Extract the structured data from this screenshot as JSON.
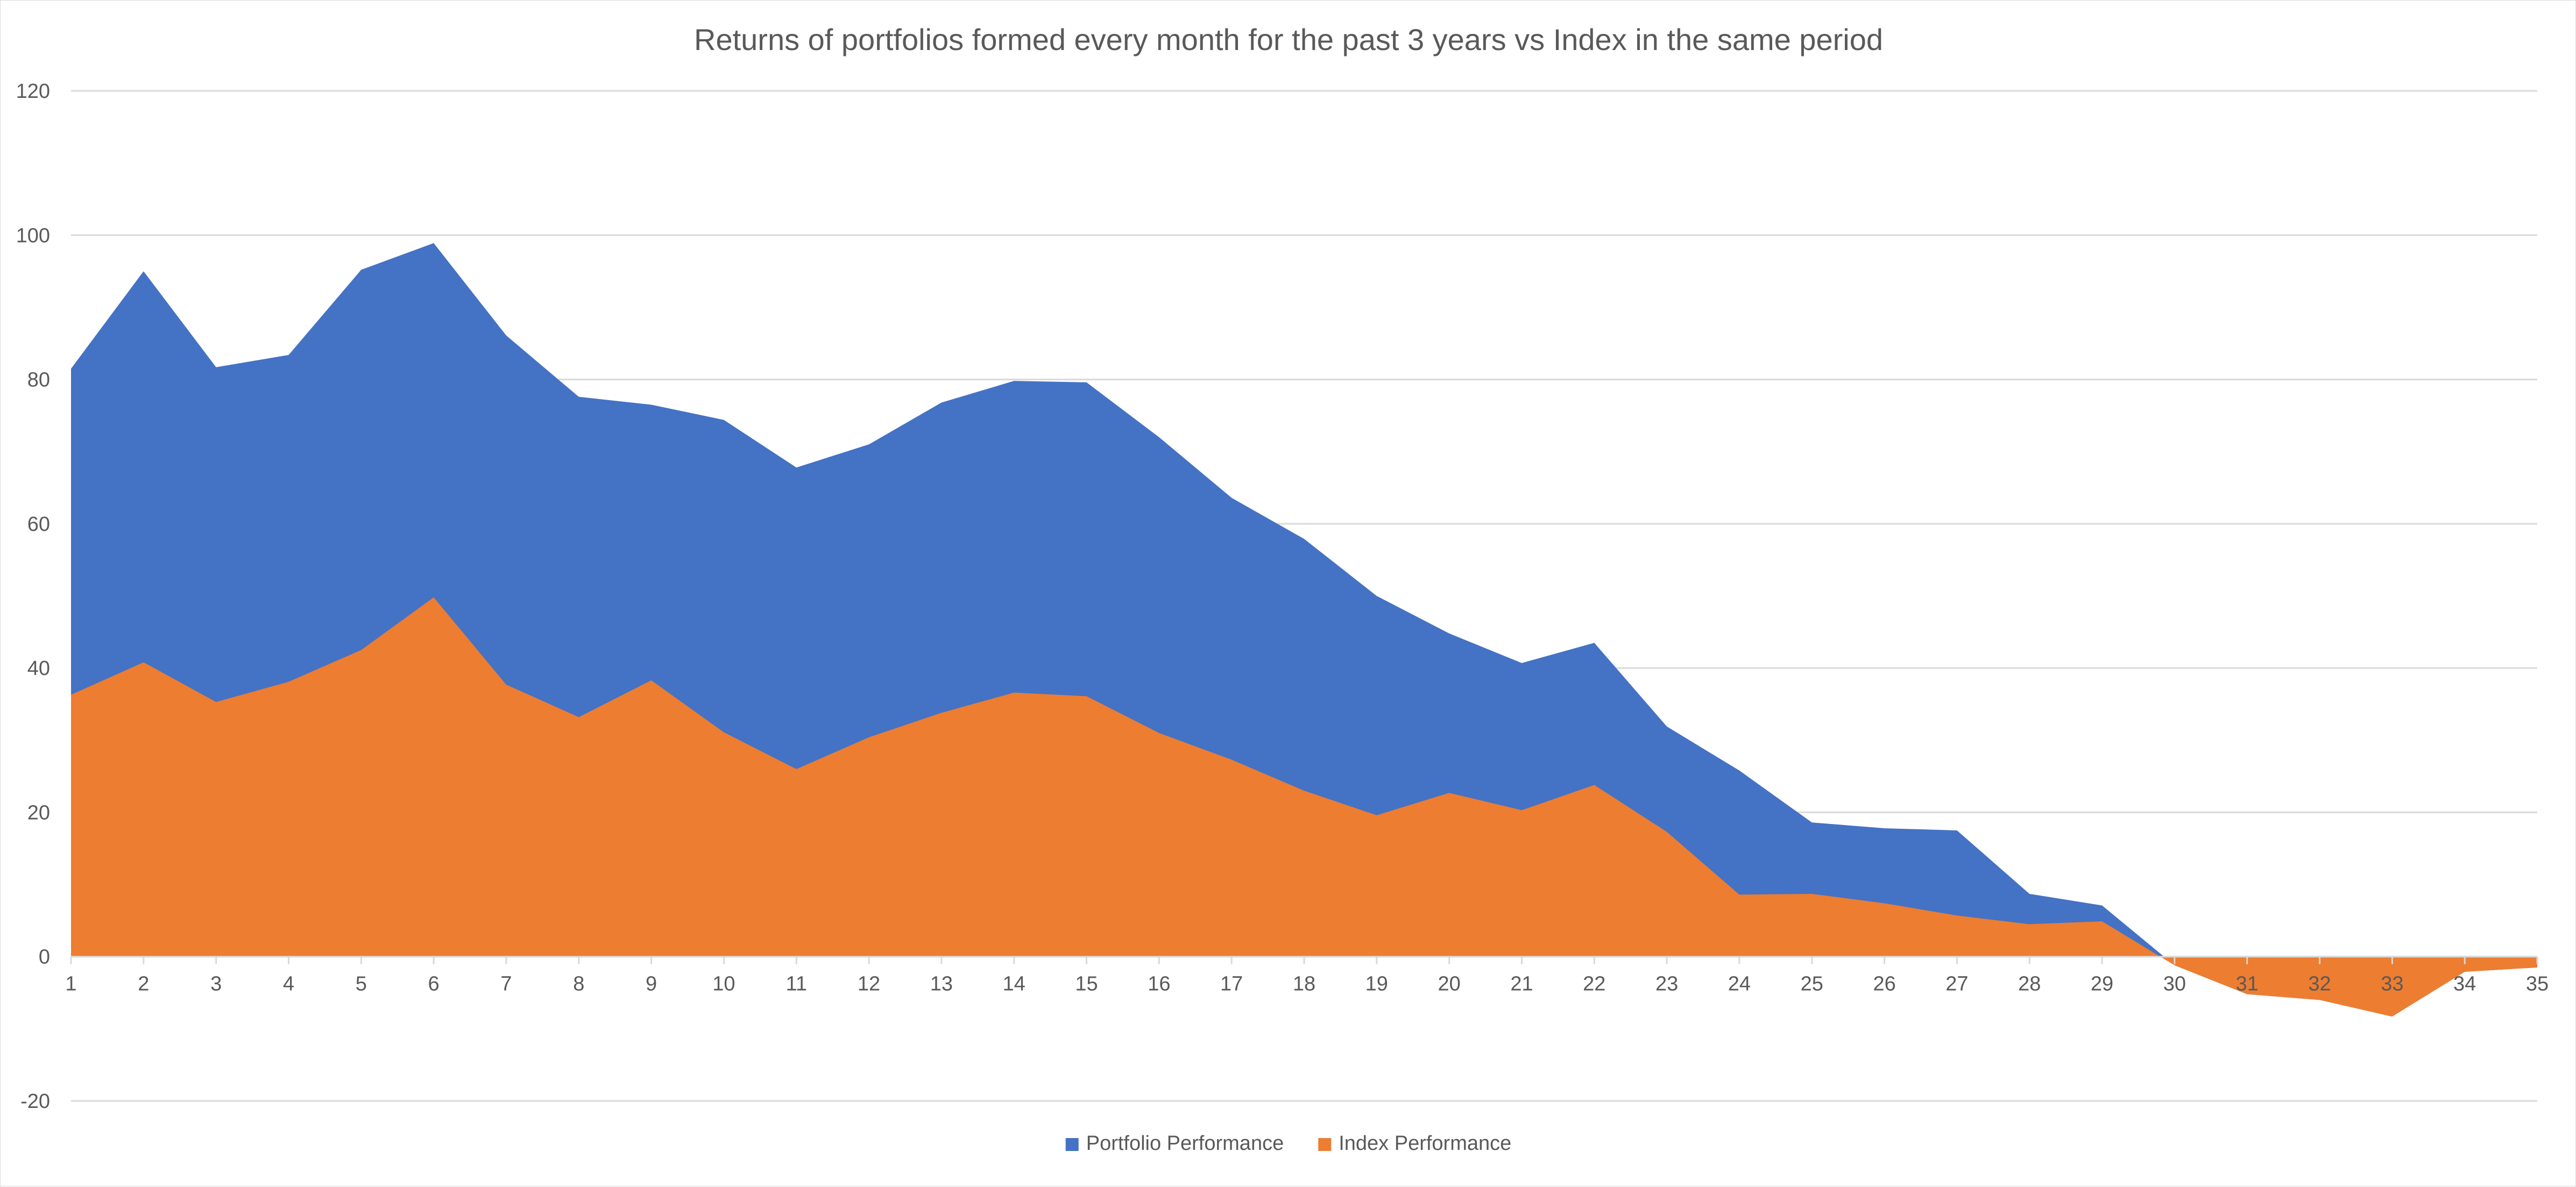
{
  "chart_data": {
    "type": "area",
    "title": "Returns of portfolios formed every  month for the past 3 years vs Index in the same period",
    "xlabel": "",
    "ylabel": "",
    "x": [
      1,
      2,
      3,
      4,
      5,
      6,
      7,
      8,
      9,
      10,
      11,
      12,
      13,
      14,
      15,
      16,
      17,
      18,
      19,
      20,
      21,
      22,
      23,
      24,
      25,
      26,
      27,
      28,
      29,
      30,
      31,
      32,
      33,
      34,
      35
    ],
    "x_tick_labels": [
      "1",
      "2",
      "3",
      "4",
      "5",
      "6",
      "7",
      "8",
      "9",
      "10",
      "11",
      "12",
      "13",
      "14",
      "15",
      "16",
      "17",
      "18",
      "19",
      "20",
      "21",
      "22",
      "23",
      "24",
      "25",
      "26",
      "27",
      "28",
      "29",
      "30",
      "31",
      "32",
      "33",
      "34",
      "35"
    ],
    "ylim": [
      -20,
      120
    ],
    "y_ticks": [
      -20,
      0,
      20,
      40,
      60,
      80,
      100,
      120
    ],
    "y_tick_labels": [
      "-20",
      "0",
      "20",
      "40",
      "60",
      "80",
      "100",
      "120"
    ],
    "grid": true,
    "legend_position": "bottom",
    "series": [
      {
        "name": "Portfolio Performance",
        "color": "#4472C4",
        "values": [
          81.5,
          95,
          81.7,
          83.4,
          95.2,
          98.9,
          86.1,
          77.6,
          76.5,
          74.4,
          67.8,
          71,
          76.8,
          79.8,
          79.6,
          72,
          63.6,
          57.9,
          50,
          44.8,
          40.7,
          43.5,
          31.9,
          25.8,
          18.6,
          17.8,
          17.5,
          8.7,
          7.1,
          -1.2,
          -5.2,
          -6,
          -8.3,
          -2.1,
          -1.5
        ]
      },
      {
        "name": "Index Performance",
        "color": "#ED7D31",
        "values": [
          36.3,
          40.8,
          35.3,
          38.1,
          42.5,
          49.8,
          37.7,
          33.2,
          38.3,
          31.1,
          26,
          30.4,
          33.8,
          36.6,
          36.1,
          31,
          27.3,
          23,
          19.6,
          22.7,
          20.3,
          23.8,
          17.3,
          8.6,
          8.7,
          7.4,
          5.7,
          4.5,
          4.9,
          -1.2,
          -5.2,
          -6,
          -8.3,
          -2.1,
          -1.5
        ]
      }
    ]
  }
}
